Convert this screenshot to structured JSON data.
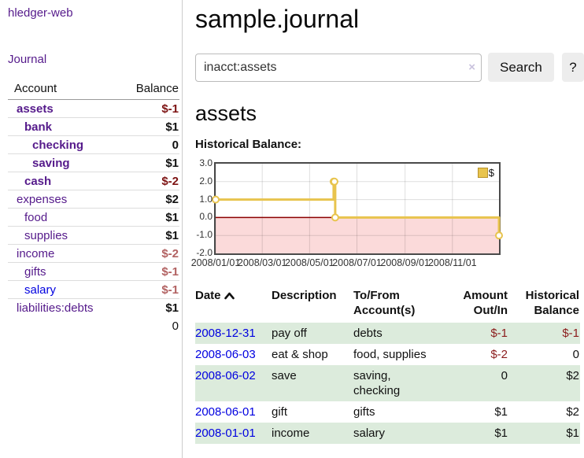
{
  "brand": "hledger-web",
  "nav": {
    "journal_label": "Journal"
  },
  "colors": {
    "link_purple": "#551a8b",
    "link_blue": "#0000e0",
    "negative": "#8b1c1c",
    "negative_bold": "#7d1313",
    "negative_muted": "#b26262",
    "row_stripe_green": "#dcebdc",
    "series_yellow": "#e8c44e",
    "negative_region_pink": "#fbdada",
    "zero_line_red": "#8b0000"
  },
  "sidebar": {
    "header": {
      "account": "Account",
      "balance": "Balance"
    },
    "rows": [
      {
        "name": "assets",
        "indent": 0,
        "bold": true,
        "link": "purple",
        "amount": "$-1",
        "amount_style": "neg-bold"
      },
      {
        "name": "bank",
        "indent": 1,
        "bold": true,
        "link": "purple",
        "amount": "$1",
        "amount_style": "pos-bold"
      },
      {
        "name": "checking",
        "indent": 2,
        "bold": true,
        "link": "purple",
        "amount": "0",
        "amount_style": "pos-bold"
      },
      {
        "name": "saving",
        "indent": 2,
        "bold": true,
        "link": "purple",
        "amount": "$1",
        "amount_style": "pos-bold"
      },
      {
        "name": "cash",
        "indent": 1,
        "bold": true,
        "link": "purple",
        "amount": "$-2",
        "amount_style": "neg-bold"
      },
      {
        "name": "expenses",
        "indent": 0,
        "bold": false,
        "link": "purple",
        "amount": "$2",
        "amount_style": "pos"
      },
      {
        "name": "food",
        "indent": 1,
        "bold": false,
        "link": "purple",
        "amount": "$1",
        "amount_style": "pos"
      },
      {
        "name": "supplies",
        "indent": 1,
        "bold": false,
        "link": "purple",
        "amount": "$1",
        "amount_style": "pos"
      },
      {
        "name": "income",
        "indent": 0,
        "bold": false,
        "link": "purple",
        "amount": "$-2",
        "amount_style": "neg-muted"
      },
      {
        "name": "gifts",
        "indent": 1,
        "bold": false,
        "link": "purple",
        "amount": "$-1",
        "amount_style": "neg-muted"
      },
      {
        "name": "salary",
        "indent": 1,
        "bold": false,
        "link": "blue",
        "amount": "$-1",
        "amount_style": "neg-muted"
      },
      {
        "name": "liabilities:debts",
        "indent": 0,
        "bold": false,
        "link": "purple",
        "amount": "$1",
        "amount_style": "pos"
      }
    ],
    "total": "0"
  },
  "header": {
    "title": "sample.journal"
  },
  "search": {
    "value": "inacct:assets",
    "clear_label": "×",
    "button_label": "Search",
    "help_label": "?"
  },
  "account_page": {
    "title": "assets",
    "chart_label": "Historical Balance:"
  },
  "chart_data": {
    "type": "line",
    "step": true,
    "title": "Historical Balance",
    "series": [
      {
        "name": "$",
        "points": [
          [
            "2008-01-01",
            1
          ],
          [
            "2008-06-01",
            2
          ],
          [
            "2008-06-02",
            2
          ],
          [
            "2008-06-03",
            0
          ],
          [
            "2008-12-31",
            -1
          ]
        ]
      }
    ],
    "ylim": [
      -2,
      3
    ],
    "yticks": [
      3,
      2,
      1,
      0,
      -1,
      -2
    ],
    "ytick_labels": [
      "3.0",
      "2.0",
      "1.0",
      "0.0",
      "-1.0",
      "-2.0"
    ],
    "xrange": [
      "2008-01-01",
      "2008-12-31"
    ],
    "xticks": [
      "2008-01-01",
      "2008-03-01",
      "2008-05-01",
      "2008-07-01",
      "2008-09-01",
      "2008-11-01"
    ],
    "xtick_labels": [
      "2008/01/01",
      "2008/03/01",
      "2008/05/01",
      "2008/07/01",
      "2008/09/01",
      "2008/11/01"
    ],
    "legend": [
      "$"
    ],
    "legend_position": "top-right",
    "grid": true
  },
  "register": {
    "columns": [
      {
        "label": "Date",
        "sorted": "asc"
      },
      {
        "label": "Description"
      },
      {
        "label": "To/From Account(s)"
      },
      {
        "label": "Amount Out/In"
      },
      {
        "label": "Historical Balance"
      }
    ],
    "rows": [
      {
        "date": "2008-12-31",
        "description": "pay off",
        "accounts": "debts",
        "amount": "$-1",
        "balance": "$-1"
      },
      {
        "date": "2008-06-03",
        "description": "eat & shop",
        "accounts": "food, supplies",
        "amount": "$-2",
        "balance": "0"
      },
      {
        "date": "2008-06-02",
        "description": "save",
        "accounts": "saving, checking",
        "amount": "0",
        "balance": "$2"
      },
      {
        "date": "2008-06-01",
        "description": "gift",
        "accounts": "gifts",
        "amount": "$1",
        "balance": "$2"
      },
      {
        "date": "2008-01-01",
        "description": "income",
        "accounts": "salary",
        "amount": "$1",
        "balance": "$1"
      }
    ]
  }
}
